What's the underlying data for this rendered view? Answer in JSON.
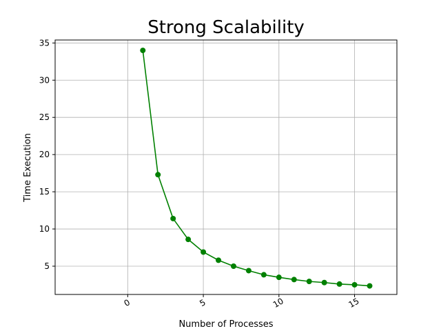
{
  "chart_data": {
    "type": "line",
    "title": "Strong Scalability",
    "xlabel": "Number of Processes",
    "ylabel": "Time Execution",
    "xlim": [
      -4.8,
      17.8
    ],
    "ylim": [
      1.2,
      35.4
    ],
    "xticks": [
      0,
      5,
      10,
      15
    ],
    "xtick_labels": [
      "0",
      "5",
      "10",
      "15"
    ],
    "xtick_rotation_deg": 30,
    "yticks": [
      5,
      10,
      15,
      20,
      25,
      30,
      35
    ],
    "ytick_labels": [
      "5",
      "10",
      "15",
      "20",
      "25",
      "30",
      "35"
    ],
    "grid": true,
    "legend": false,
    "series": [
      {
        "color": "#008000",
        "marker": "circle",
        "x": [
          1,
          2,
          3,
          4,
          5,
          6,
          7,
          8,
          9,
          10,
          11,
          12,
          13,
          14,
          15,
          16
        ],
        "y": [
          34.0,
          17.3,
          11.4,
          8.6,
          6.9,
          5.8,
          5.0,
          4.4,
          3.85,
          3.5,
          3.2,
          2.95,
          2.8,
          2.6,
          2.5,
          2.35
        ]
      }
    ]
  }
}
